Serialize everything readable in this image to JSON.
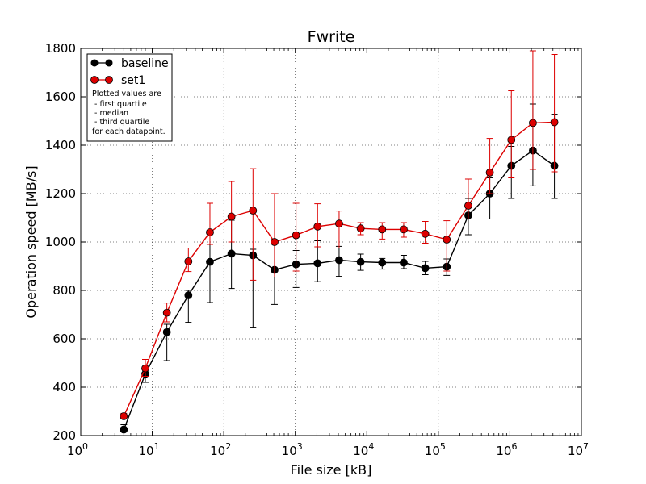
{
  "chart_data": {
    "type": "line",
    "title": "Fwrite",
    "xlabel": "File size [kB]",
    "ylabel": "Operation speed [MB/s]",
    "x_scale": "log",
    "xlim": [
      1,
      10000000
    ],
    "ylim": [
      200,
      1800
    ],
    "x_ticks": [
      {
        "value": 1,
        "base": "10",
        "exp": "0"
      },
      {
        "value": 10,
        "base": "10",
        "exp": "1"
      },
      {
        "value": 100,
        "base": "10",
        "exp": "2"
      },
      {
        "value": 1000,
        "base": "10",
        "exp": "3"
      },
      {
        "value": 10000,
        "base": "10",
        "exp": "4"
      },
      {
        "value": 100000,
        "base": "10",
        "exp": "5"
      },
      {
        "value": 1000000,
        "base": "10",
        "exp": "6"
      },
      {
        "value": 10000000,
        "base": "10",
        "exp": "7"
      }
    ],
    "y_ticks": [
      200,
      400,
      600,
      800,
      1000,
      1200,
      1400,
      1600,
      1800
    ],
    "grid": true,
    "legend_position": "top-left",
    "x": [
      4,
      8,
      16,
      32,
      64,
      128,
      256,
      512,
      1024,
      2048,
      4096,
      8192,
      16384,
      32768,
      65536,
      131072,
      262144,
      524288,
      1048576,
      2097152,
      4194304
    ],
    "series": [
      {
        "name": "baseline",
        "color": "#000000",
        "values": [
          225,
          455,
          628,
          780,
          918,
          952,
          945,
          885,
          908,
          912,
          925,
          918,
          915,
          915,
          892,
          898,
          1110,
          1200,
          1315,
          1378,
          1315
        ],
        "lower": [
          215,
          420,
          510,
          668,
          750,
          808,
          648,
          742,
          812,
          836,
          858,
          883,
          888,
          890,
          865,
          862,
          1030,
          1095,
          1180,
          1232,
          1180
        ],
        "upper": [
          245,
          470,
          660,
          800,
          990,
          1090,
          970,
          1010,
          965,
          1005,
          982,
          950,
          932,
          945,
          920,
          930,
          1180,
          1265,
          1395,
          1570,
          1528
        ]
      },
      {
        "name": "set1",
        "color": "#dd0000",
        "values": [
          280,
          478,
          708,
          920,
          1040,
          1105,
          1130,
          1000,
          1028,
          1064,
          1076,
          1056,
          1052,
          1052,
          1034,
          1010,
          1150,
          1287,
          1422,
          1492,
          1495
        ],
        "lower": [
          270,
          445,
          670,
          878,
          990,
          1000,
          842,
          855,
          880,
          980,
          975,
          1030,
          1012,
          1020,
          995,
          880,
          1095,
          1200,
          1265,
          1300,
          1290
        ],
        "upper": [
          292,
          515,
          748,
          975,
          1160,
          1250,
          1303,
          1200,
          1160,
          1158,
          1128,
          1080,
          1080,
          1080,
          1085,
          1088,
          1260,
          1428,
          1625,
          1790,
          1775
        ]
      }
    ],
    "legend_note": [
      "Plotted values are",
      " - first quartile",
      " - median",
      " - third quartile",
      "for each datapoint."
    ]
  }
}
